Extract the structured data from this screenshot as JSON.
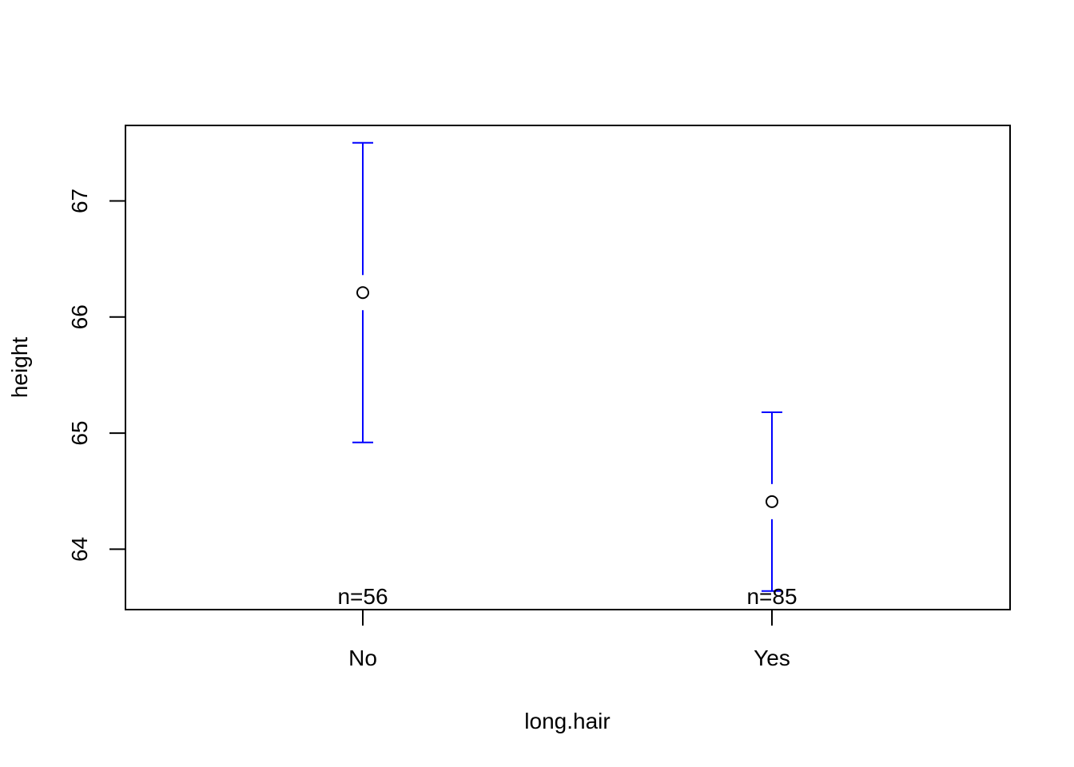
{
  "chart_data": {
    "type": "errorbar",
    "xlabel": "long.hair",
    "ylabel": "height",
    "categories": [
      "No",
      "Yes"
    ],
    "y_ticks": [
      64,
      65,
      66,
      67
    ],
    "ylim": [
      63.48,
      67.65
    ],
    "points": [
      {
        "category": "No",
        "mean": 66.21,
        "upper": 67.5,
        "lower": 64.92,
        "n_label": "n=56"
      },
      {
        "category": "Yes",
        "mean": 64.41,
        "upper": 65.18,
        "lower": 63.64,
        "n_label": "n=85"
      }
    ],
    "colors": {
      "error_bar": "#0000ff",
      "point": "#000000",
      "axis": "#000000"
    },
    "grid": false
  }
}
